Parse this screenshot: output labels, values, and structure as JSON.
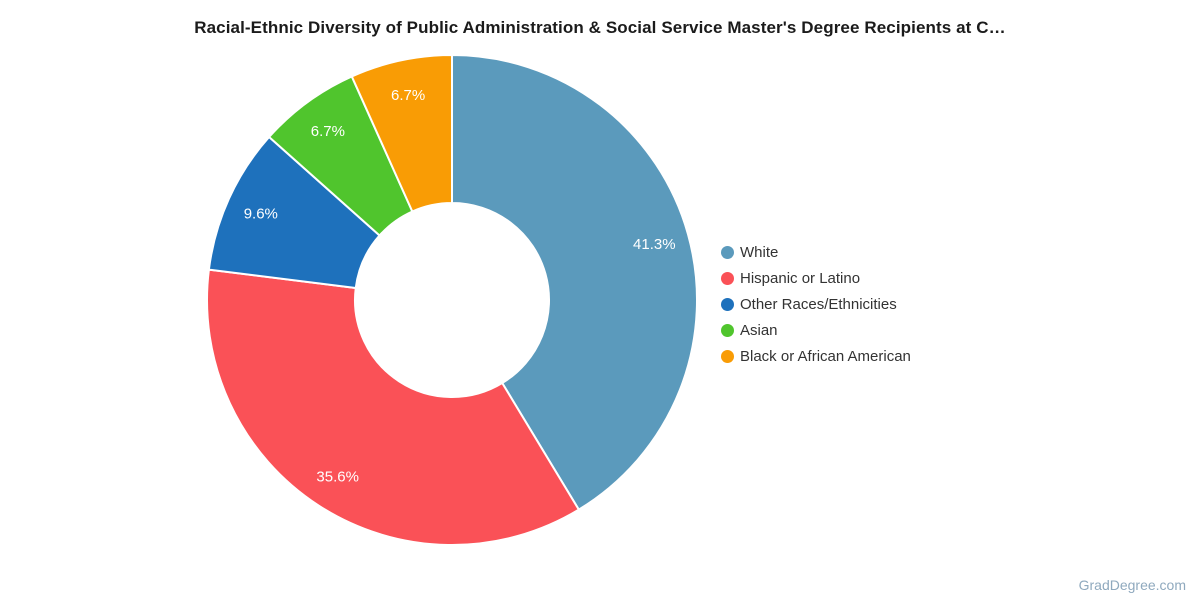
{
  "watermark": "GradDegree.com",
  "chart_data": {
    "type": "pie",
    "subtype": "donut",
    "title": "Racial-Ethnic Diversity of Public Administration & Social Service Master's Degree Recipients at C…",
    "categories": [
      "White",
      "Hispanic or Latino",
      "Other Races/Ethnicities",
      "Asian",
      "Black or African American"
    ],
    "values": [
      41.3,
      35.6,
      9.6,
      6.7,
      6.7
    ],
    "data_labels": [
      "41.3%",
      "35.6%",
      "9.6%",
      "6.7%",
      "6.7%"
    ],
    "colors": [
      "#5B9ABC",
      "#FA5157",
      "#1E71BC",
      "#50C52D",
      "#F99C05"
    ],
    "start_angle_deg": 0,
    "direction": "clockwise",
    "legend_position": "right",
    "data_label_color": "#FFFFFF",
    "hole_color": "#FFFFFF",
    "slice_border_color": "#FFFFFF"
  }
}
